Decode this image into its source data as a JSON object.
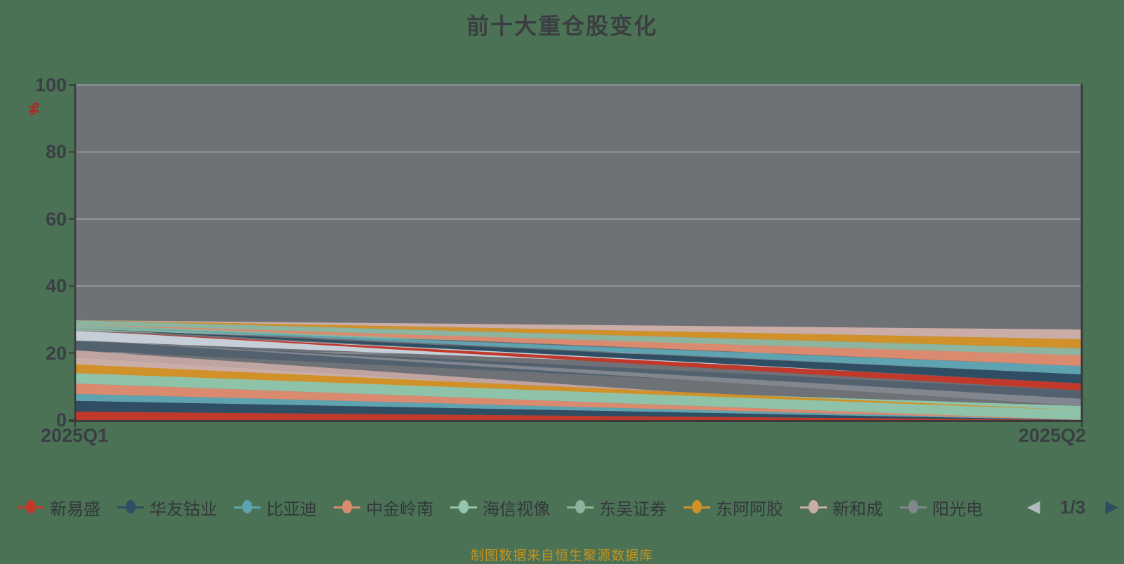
{
  "title": "前十大重仓股变化",
  "y_axis": {
    "unit": "%",
    "ticks": [
      0,
      20,
      40,
      60,
      80,
      100
    ]
  },
  "x_axis": {
    "labels": [
      "2025Q1",
      "2025Q2"
    ]
  },
  "legend": {
    "items": [
      {
        "label": "新易盛",
        "color": "#c0392b"
      },
      {
        "label": "华友钴业",
        "color": "#2f4d63"
      },
      {
        "label": "比亚迪",
        "color": "#5fa3b0"
      },
      {
        "label": "中金岭南",
        "color": "#d98a6f"
      },
      {
        "label": "海信视像",
        "color": "#93c6ac"
      },
      {
        "label": "东吴证券",
        "color": "#8cb49e"
      },
      {
        "label": "东阿阿胶",
        "color": "#d0912a"
      },
      {
        "label": "新和成",
        "color": "#c9ada6"
      },
      {
        "label": "阳光电源",
        "color": "#82878f"
      }
    ],
    "pagination": {
      "page": "1/3",
      "prev_icon": "◀",
      "next_icon": "▶"
    }
  },
  "footer": {
    "text": "制图数据来自恒生聚源数据库"
  },
  "chart_data": {
    "type": "area",
    "subtype": "stacked-bump-stream",
    "x": [
      "2025Q1",
      "2025Q2"
    ],
    "unit": "%",
    "ylim": [
      0,
      100
    ],
    "grid": true,
    "plot_background_color": "#6e7176",
    "gridline_color": "#9aa0a5",
    "axis_color": "#3a3a3a",
    "series_note": "q1/q2 are [bottom,top] stacked % positions read from the chart; unlabeled bands belong to legend pages 2-3 (names not visible)",
    "series": [
      {
        "label": "",
        "color": "#c6cfd8",
        "q1": [
          23.7,
          26.6
        ],
        "q2": [
          12.0,
          12.0
        ]
      },
      {
        "label": "",
        "color": "#53616e",
        "q1": [
          20.8,
          23.7
        ],
        "q2": [
          6.3,
          8.8
        ]
      },
      {
        "label": "",
        "color": "#bfa4a2",
        "q1": [
          18.7,
          20.8
        ],
        "q2": [
          0.0,
          0.0
        ]
      },
      {
        "label": "",
        "color": "#c9ada6",
        "q1": [
          16.6,
          18.7
        ],
        "q2": [
          0.0,
          0.0
        ]
      },
      {
        "label": "海信视像",
        "color": "#8fc3a9",
        "q1": [
          10.9,
          14.0
        ],
        "q2": [
          0.0,
          4.2
        ]
      },
      {
        "label": "",
        "color": "#d98a6f",
        "q1": [
          7.8,
          10.9
        ],
        "q2": [
          0.0,
          0.0
        ]
      },
      {
        "label": "",
        "color": "#5fa3b0",
        "q1": [
          5.7,
          7.8
        ],
        "q2": [
          0.0,
          0.0
        ]
      },
      {
        "label": "",
        "color": "#2f4d63",
        "q1": [
          2.5,
          5.7
        ],
        "q2": [
          0.0,
          0.0
        ]
      },
      {
        "label": "",
        "color": "#c0392b",
        "q1": [
          0.0,
          2.5
        ],
        "q2": [
          0.0,
          0.0
        ]
      },
      {
        "label": "",
        "color": "#d0912a",
        "q1": [
          14.0,
          16.6
        ],
        "q2": [
          2.9,
          2.9
        ]
      },
      {
        "label": "东吴证券",
        "color": "#8cb49e",
        "q1": [
          26.6,
          29.8
        ],
        "q2": [
          19.3,
          21.4
        ]
      },
      {
        "label": "阳光电源",
        "color": "#82878f",
        "q1": [
          24.0,
          24.0
        ],
        "q2": [
          4.2,
          6.3
        ]
      },
      {
        "label": "新和成",
        "color": "#c9ada6",
        "q1": [
          29.8,
          29.8
        ],
        "q2": [
          24.1,
          27.0
        ]
      },
      {
        "label": "东阿阿胶",
        "color": "#d0912a",
        "q1": [
          29.8,
          29.8
        ],
        "q2": [
          21.4,
          24.1
        ]
      },
      {
        "label": "中金岭南",
        "color": "#d98a6f",
        "q1": [
          28.6,
          28.6
        ],
        "q2": [
          16.1,
          19.3
        ]
      },
      {
        "label": "比亚迪",
        "color": "#5fa3b0",
        "q1": [
          28.0,
          28.0
        ],
        "q2": [
          13.6,
          16.1
        ]
      },
      {
        "label": "华友钴业",
        "color": "#2f4d63",
        "q1": [
          27.4,
          27.4
        ],
        "q2": [
          10.9,
          13.6
        ]
      },
      {
        "label": "新易盛",
        "color": "#c0392b",
        "q1": [
          26.8,
          26.8
        ],
        "q2": [
          8.8,
          10.9
        ]
      }
    ]
  }
}
